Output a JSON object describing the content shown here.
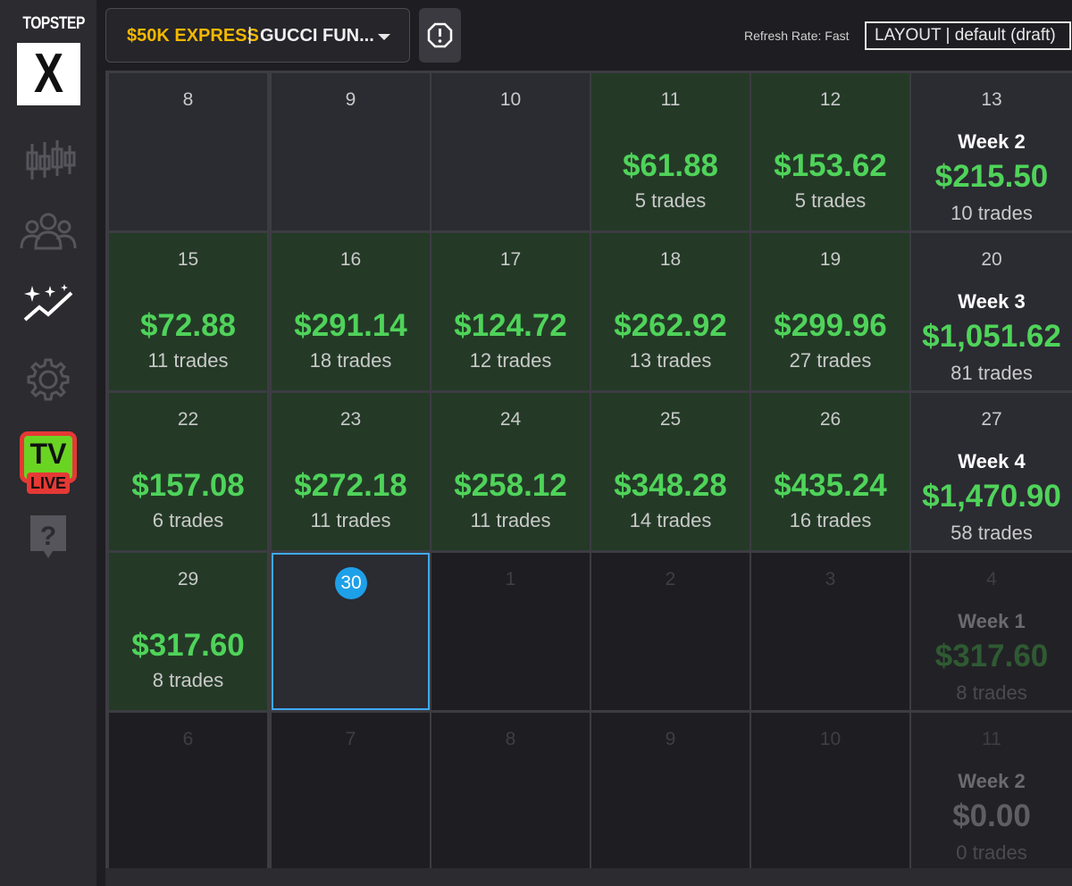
{
  "logo": {
    "text": "TOPSTEP",
    "mark": "X"
  },
  "sidebar": {
    "items": [
      {
        "name": "candlestick-chart-icon"
      },
      {
        "name": "users-icon"
      },
      {
        "name": "sparkle-trend-icon"
      },
      {
        "name": "gear-icon"
      },
      {
        "name": "tv-live-icon",
        "tv": "TV",
        "live": "LIVE"
      },
      {
        "name": "help-icon",
        "glyph": "?"
      }
    ]
  },
  "header": {
    "account_type": "$50K EXPRESS",
    "separator": "|",
    "account_name": "GUCCI FUN...",
    "refresh_rate": "Refresh Rate: Fast",
    "layout": "LAYOUT | default (draft)"
  },
  "calendar": {
    "rows": [
      {
        "days": [
          {
            "day": "8",
            "state": "empty"
          },
          {
            "day": "9",
            "state": "empty"
          },
          {
            "day": "10",
            "state": "empty"
          },
          {
            "day": "11",
            "state": "green",
            "pnl": "$61.88",
            "trades": "5 trades"
          },
          {
            "day": "12",
            "state": "green",
            "pnl": "$153.62",
            "trades": "5 trades"
          }
        ],
        "week": {
          "day": "13",
          "label": "Week 2",
          "pnl": "$215.50",
          "trades": "10 trades"
        }
      },
      {
        "days": [
          {
            "day": "15",
            "state": "green",
            "pnl": "$72.88",
            "trades": "11 trades"
          },
          {
            "day": "16",
            "state": "green",
            "pnl": "$291.14",
            "trades": "18 trades"
          },
          {
            "day": "17",
            "state": "green",
            "pnl": "$124.72",
            "trades": "12 trades"
          },
          {
            "day": "18",
            "state": "green",
            "pnl": "$262.92",
            "trades": "13 trades"
          },
          {
            "day": "19",
            "state": "green",
            "pnl": "$299.96",
            "trades": "27 trades"
          }
        ],
        "week": {
          "day": "20",
          "label": "Week 3",
          "pnl": "$1,051.62",
          "trades": "81 trades"
        }
      },
      {
        "days": [
          {
            "day": "22",
            "state": "green",
            "pnl": "$157.08",
            "trades": "6 trades"
          },
          {
            "day": "23",
            "state": "green",
            "pnl": "$272.18",
            "trades": "11 trades"
          },
          {
            "day": "24",
            "state": "green",
            "pnl": "$258.12",
            "trades": "11 trades"
          },
          {
            "day": "25",
            "state": "green",
            "pnl": "$348.28",
            "trades": "14 trades"
          },
          {
            "day": "26",
            "state": "green",
            "pnl": "$435.24",
            "trades": "16 trades"
          }
        ],
        "week": {
          "day": "27",
          "label": "Week 4",
          "pnl": "$1,470.90",
          "trades": "58 trades"
        }
      },
      {
        "days": [
          {
            "day": "29",
            "state": "green",
            "pnl": "$317.60",
            "trades": "8 trades"
          },
          {
            "day": "30",
            "state": "today"
          },
          {
            "day": "1",
            "state": "future"
          },
          {
            "day": "2",
            "state": "future"
          },
          {
            "day": "3",
            "state": "future"
          }
        ],
        "week": {
          "day": "4",
          "label": "Week 1",
          "pnl": "$317.60",
          "trades": "8 trades",
          "future": true,
          "tone": "dim"
        }
      },
      {
        "days": [
          {
            "day": "6",
            "state": "future"
          },
          {
            "day": "7",
            "state": "future"
          },
          {
            "day": "8",
            "state": "future"
          },
          {
            "day": "9",
            "state": "future"
          },
          {
            "day": "10",
            "state": "future"
          }
        ],
        "week": {
          "day": "11",
          "label": "Week 2",
          "pnl": "$0.00",
          "trades": "0 trades",
          "future": true,
          "tone": "zero"
        }
      }
    ]
  },
  "colors": {
    "profit": "#4fd35a",
    "account_type": "#f5b800",
    "today": "#1ea0e8",
    "profit_cell": "#243a27"
  }
}
